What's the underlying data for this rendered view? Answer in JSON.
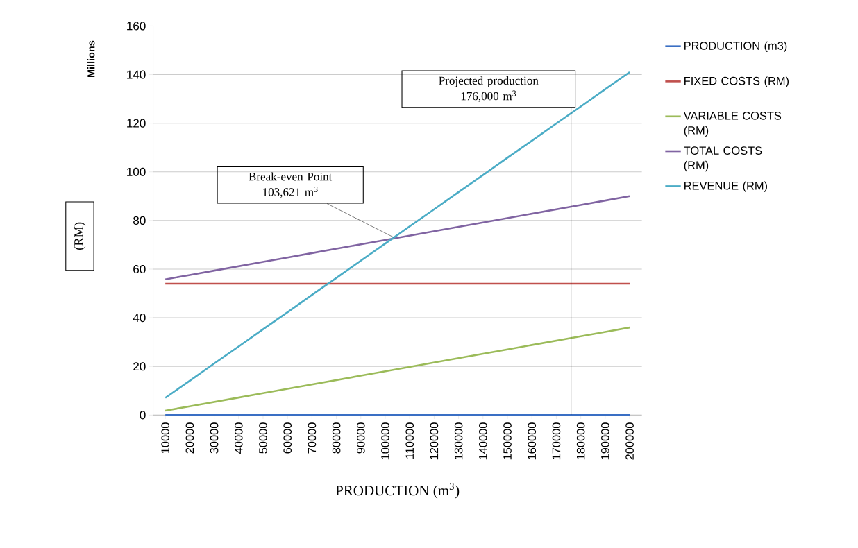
{
  "chart_data": {
    "type": "line",
    "xlabel": "PRODUCTION (m$^{3}$)",
    "ylabel": "(RM)",
    "x": [
      10000,
      20000,
      30000,
      40000,
      50000,
      60000,
      70000,
      80000,
      90000,
      100000,
      110000,
      120000,
      130000,
      140000,
      150000,
      160000,
      170000,
      180000,
      190000,
      200000
    ],
    "xlim": [
      5000,
      205000
    ],
    "xticks": [
      10000,
      20000,
      30000,
      40000,
      50000,
      60000,
      70000,
      80000,
      90000,
      100000,
      110000,
      120000,
      130000,
      140000,
      150000,
      160000,
      170000,
      180000,
      190000,
      200000
    ],
    "ylim": [
      0,
      160
    ],
    "yticks": [
      0,
      20,
      40,
      60,
      80,
      100,
      120,
      140,
      160
    ],
    "grid": "y",
    "legend": "right",
    "series": [
      {
        "name": "PRODUCTION (m3)",
        "color": "#3a6fc4",
        "values": [
          0,
          0,
          0,
          0,
          0,
          0,
          0,
          0,
          0,
          0,
          0,
          0,
          0,
          0,
          0,
          0,
          0,
          0,
          0,
          0
        ]
      },
      {
        "name": "FIXED COSTS (RM)",
        "color": "#c0504d",
        "values": [
          54,
          54,
          54,
          54,
          54,
          54,
          54,
          54,
          54,
          54,
          54,
          54,
          54,
          54,
          54,
          54,
          54,
          54,
          54,
          54
        ]
      },
      {
        "name": "VARIABLE COSTS (RM)",
        "color": "#9bbb59",
        "values": [
          1.8,
          3.6,
          5.4,
          7.2,
          9,
          10.8,
          12.6,
          14.4,
          16.2,
          18,
          19.8,
          21.6,
          23.4,
          25.2,
          27,
          28.8,
          30.6,
          32.4,
          34.2,
          36
        ]
      },
      {
        "name": "TOTAL COSTS (RM)",
        "color": "#8064a2",
        "values": [
          55.8,
          57.6,
          59.4,
          61.2,
          63,
          64.8,
          66.6,
          68.4,
          70.2,
          72,
          73.8,
          75.6,
          77.4,
          79.2,
          81,
          82.8,
          84.6,
          86.4,
          88.2,
          90
        ]
      },
      {
        "name": "REVENUE (RM)",
        "color": "#4bacc6",
        "values": [
          7.1,
          14.1,
          21.2,
          28.2,
          35.3,
          42.3,
          49.4,
          56.4,
          63.5,
          70.5,
          77.6,
          84.6,
          91.7,
          98.7,
          105.8,
          112.8,
          119.9,
          126.9,
          134,
          141
        ]
      }
    ],
    "ref_lines": [
      {
        "axis": "x",
        "value": 176000,
        "label": "Projected production 176,000 m$^{3}$",
        "color": "#000000"
      }
    ],
    "annotations": [
      "Millions",
      {
        "text": "Break-even Point 103,621 m$^{3}$",
        "x": 103621,
        "y": 73
      }
    ]
  }
}
